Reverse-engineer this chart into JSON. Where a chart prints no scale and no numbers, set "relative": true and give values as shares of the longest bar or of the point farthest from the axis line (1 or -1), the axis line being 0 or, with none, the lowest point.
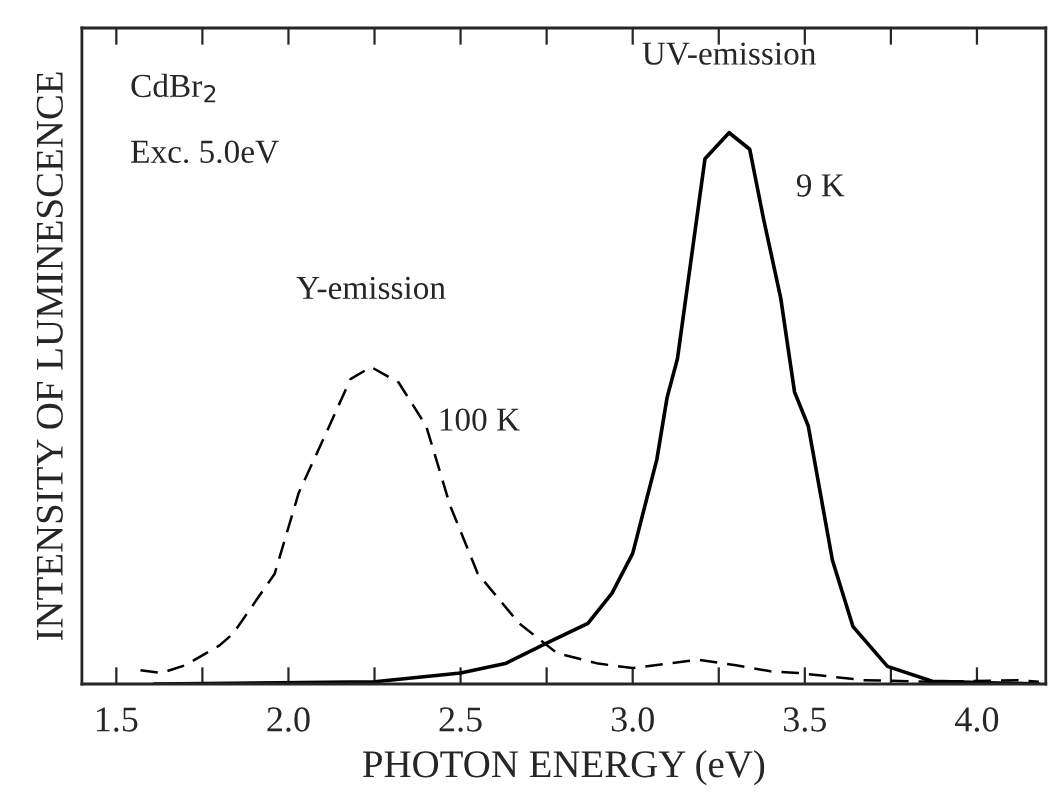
{
  "chart_data": {
    "type": "line",
    "relative": true,
    "xlabel": "PHOTON ENERGY (eV)",
    "ylabel": "INTENSITY OF LUMINESCENCE",
    "xlim": [
      1.4,
      4.2
    ],
    "xticks": [
      1.5,
      {
        "value": 1.75,
        "label": null
      },
      {
        "value": 2,
        "label": "2.0"
      },
      {
        "value": 2.25,
        "label": null
      },
      2.5,
      {
        "value": 2.75,
        "label": null
      },
      {
        "value": 3,
        "label": "3.0"
      },
      {
        "value": 3.25,
        "label": null
      },
      3.5,
      {
        "value": 3.75,
        "label": null
      },
      {
        "value": 4,
        "label": "4.0"
      }
    ],
    "annotations": [
      "CdBr$_{2}$",
      "Exc. 5.0eV",
      {
        "text": "Y-emission",
        "x": 2.24,
        "y": 0.575
      },
      {
        "text": "UV-emission",
        "x": 3.28,
        "y": 1.0
      }
    ],
    "series": [
      {
        "name": "9 K",
        "color": "#000000",
        "line_style": "solid",
        "x": [
          1.61,
          2.25,
          2.5,
          2.63,
          2.75,
          2.87,
          2.94,
          3.0,
          3.07,
          3.1,
          3.13,
          3.21,
          3.28,
          3.34,
          3.38,
          3.43,
          3.47,
          3.51,
          3.58,
          3.64,
          3.74,
          3.87,
          4.18
        ],
        "values": [
          0.0,
          0.004,
          0.02,
          0.037,
          0.074,
          0.11,
          0.165,
          0.237,
          0.407,
          0.52,
          0.59,
          0.953,
          1.0,
          0.97,
          0.844,
          0.7,
          0.53,
          0.468,
          0.225,
          0.104,
          0.032,
          0.005,
          0.0
        ]
      },
      {
        "name": "100 K",
        "color": "#000000",
        "line_style": "dashed",
        "x": [
          1.57,
          1.63,
          1.7,
          1.8,
          1.84,
          1.96,
          2.03,
          2.11,
          2.18,
          2.24,
          2.32,
          2.4,
          2.47,
          2.55,
          2.67,
          2.78,
          2.9,
          3.0,
          3.19,
          3.3,
          3.4,
          3.48,
          3.67,
          3.87,
          4.12,
          4.18
        ],
        "values": [
          0.025,
          0.02,
          0.034,
          0.07,
          0.092,
          0.2,
          0.347,
          0.456,
          0.553,
          0.575,
          0.547,
          0.468,
          0.323,
          0.2,
          0.11,
          0.056,
          0.037,
          0.029,
          0.044,
          0.034,
          0.023,
          0.02,
          0.007,
          0.004,
          0.007,
          0.004
        ]
      }
    ]
  }
}
